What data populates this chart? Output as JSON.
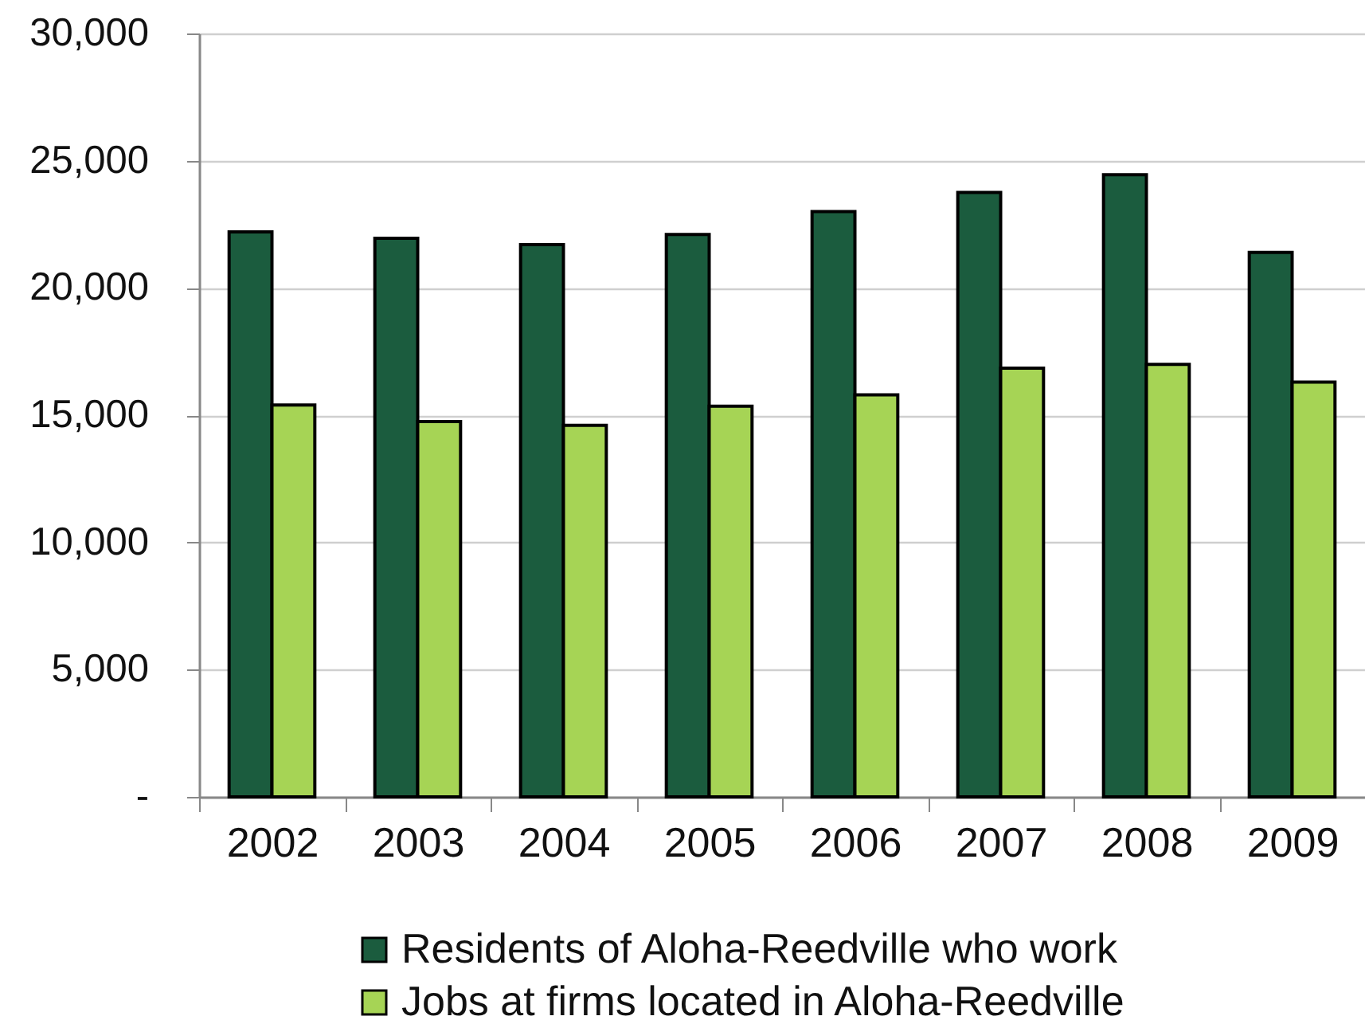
{
  "chart_data": {
    "type": "bar",
    "categories": [
      "2002",
      "2003",
      "2004",
      "2005",
      "2006",
      "2007",
      "2008",
      "2009"
    ],
    "series": [
      {
        "name": "Residents of Aloha-Reedville who work",
        "color": "#1b5c3e",
        "values": [
          22200,
          21950,
          21700,
          22100,
          23000,
          23750,
          24450,
          21400
        ]
      },
      {
        "name": "Jobs at firms located in Aloha-Reedville",
        "color": "#a6d455",
        "values": [
          15400,
          14750,
          14600,
          15350,
          15800,
          16850,
          17000,
          16300
        ]
      }
    ],
    "ylim": [
      0,
      30000
    ],
    "yticks": [
      {
        "value": 0,
        "label": "-"
      },
      {
        "value": 5000,
        "label": "5,000"
      },
      {
        "value": 10000,
        "label": "10,000"
      },
      {
        "value": 15000,
        "label": "15,000"
      },
      {
        "value": 20000,
        "label": "20,000"
      },
      {
        "value": 25000,
        "label": "25,000"
      },
      {
        "value": 30000,
        "label": "30,000"
      }
    ],
    "grid": "y",
    "legend": "bottom"
  }
}
